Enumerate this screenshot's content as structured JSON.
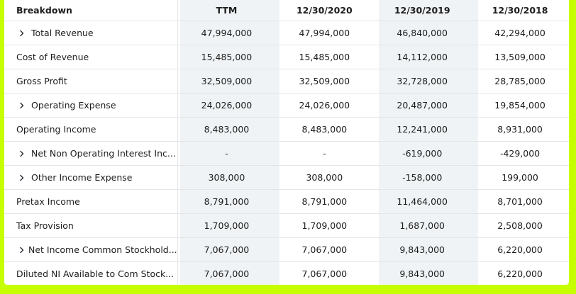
{
  "header": {
    "breakdown": "Breakdown",
    "columns": [
      "TTM",
      "12/30/2020",
      "12/30/2019",
      "12/30/2018"
    ]
  },
  "rows": [
    {
      "label": "Total Revenue",
      "expandable": true,
      "values": [
        "47,994,000",
        "47,994,000",
        "46,840,000",
        "42,294,000"
      ]
    },
    {
      "label": "Cost of Revenue",
      "expandable": false,
      "values": [
        "15,485,000",
        "15,485,000",
        "14,112,000",
        "13,509,000"
      ]
    },
    {
      "label": "Gross Profit",
      "expandable": false,
      "values": [
        "32,509,000",
        "32,509,000",
        "32,728,000",
        "28,785,000"
      ]
    },
    {
      "label": "Operating Expense",
      "expandable": true,
      "values": [
        "24,026,000",
        "24,026,000",
        "20,487,000",
        "19,854,000"
      ]
    },
    {
      "label": "Operating Income",
      "expandable": false,
      "values": [
        "8,483,000",
        "8,483,000",
        "12,241,000",
        "8,931,000"
      ]
    },
    {
      "label": "Net Non Operating Interest Inc...",
      "expandable": true,
      "values": [
        "-",
        "-",
        "-619,000",
        "-429,000"
      ]
    },
    {
      "label": "Other Income Expense",
      "expandable": true,
      "values": [
        "308,000",
        "308,000",
        "-158,000",
        "199,000"
      ]
    },
    {
      "label": "Pretax Income",
      "expandable": false,
      "values": [
        "8,791,000",
        "8,791,000",
        "11,464,000",
        "8,701,000"
      ]
    },
    {
      "label": "Tax Provision",
      "expandable": false,
      "values": [
        "1,709,000",
        "1,709,000",
        "1,687,000",
        "2,508,000"
      ]
    },
    {
      "label": "Net Income Common Stockhold...",
      "expandable": true,
      "values": [
        "7,067,000",
        "7,067,000",
        "9,843,000",
        "6,220,000"
      ]
    },
    {
      "label": "Diluted NI Available to Com Stock...",
      "expandable": false,
      "values": [
        "7,067,000",
        "7,067,000",
        "9,843,000",
        "6,220,000"
      ]
    }
  ],
  "colors": {
    "frame": "#c5ff00",
    "highlight_column": "#f0f3f5",
    "text": "#1d1d1d"
  },
  "icons": {
    "expand": "chevron-right-icon"
  }
}
